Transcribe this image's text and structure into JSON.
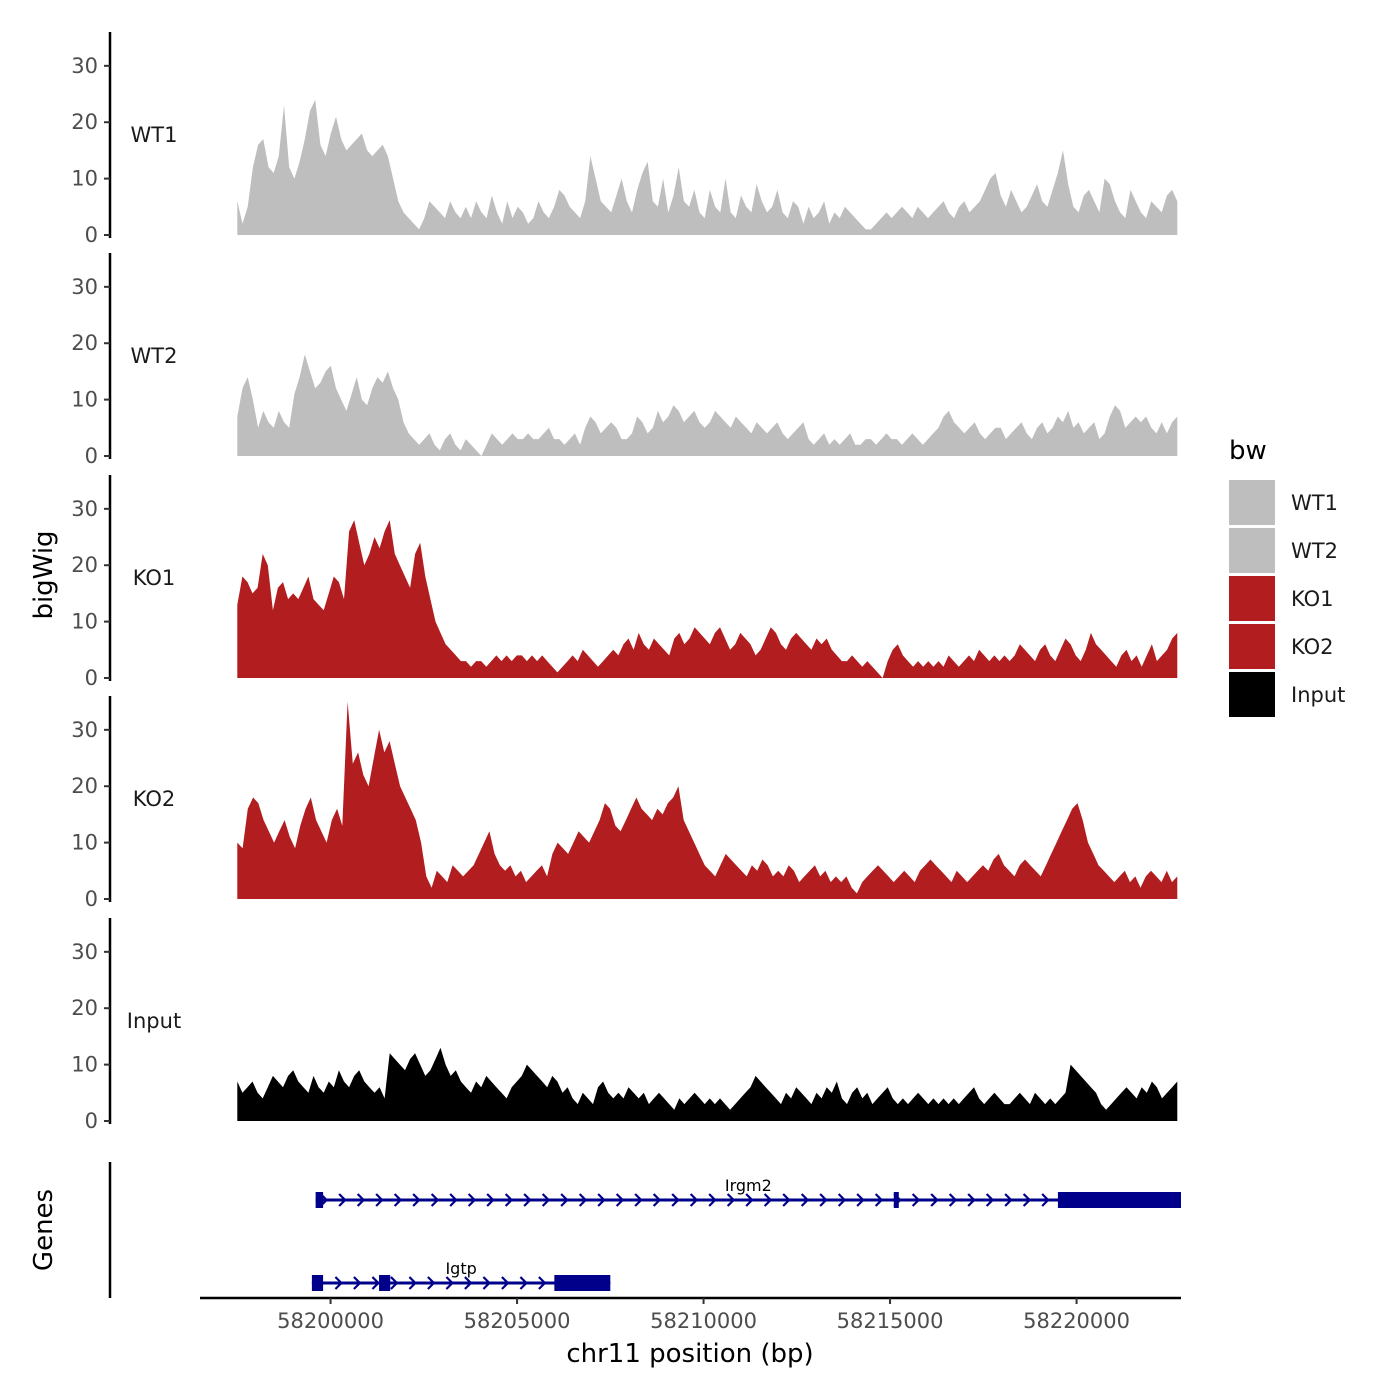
{
  "chart_data": {
    "type": "area",
    "chromosome_axis_label": "chr11 position (bp)",
    "y_axis_title": "bigWig",
    "genes_panel_title": "Genes",
    "x_range": [
      58196500,
      58222800
    ],
    "x_ticks": [
      58200000,
      58205000,
      58210000,
      58215000,
      58220000
    ],
    "x_tick_labels": [
      "58200000",
      "58205000",
      "58210000",
      "58215000",
      "58220000"
    ],
    "y_range": [
      0,
      36
    ],
    "y_ticks": [
      0,
      10,
      20,
      30
    ],
    "y_tick_labels": [
      "0",
      "10",
      "20",
      "30"
    ],
    "signal_x_start": 58197500,
    "signal_x_end": 58222700,
    "tracks": [
      {
        "name": "WT1",
        "color": "#bebebe",
        "values": [
          6,
          2,
          5,
          12,
          16,
          17,
          12,
          11,
          14,
          23,
          12,
          10,
          13,
          17,
          22,
          24,
          16,
          14,
          18,
          21,
          17,
          15,
          16,
          17,
          18,
          15,
          14,
          15,
          16,
          14,
          10,
          6,
          4,
          3,
          2,
          1,
          3,
          6,
          5,
          4,
          3,
          6,
          4,
          3,
          5,
          3,
          6,
          4,
          3,
          7,
          4,
          2,
          6,
          3,
          5,
          4,
          2,
          3,
          6,
          4,
          3,
          5,
          8,
          7,
          5,
          4,
          3,
          6,
          14,
          10,
          6,
          5,
          4,
          7,
          10,
          6,
          4,
          8,
          11,
          13,
          6,
          5,
          10,
          4,
          7,
          12,
          6,
          5,
          8,
          4,
          3,
          8,
          5,
          4,
          10,
          4,
          3,
          7,
          5,
          4,
          9,
          6,
          4,
          5,
          8,
          4,
          3,
          6,
          5,
          2,
          5,
          3,
          4,
          6,
          2,
          4,
          3,
          5,
          4,
          3,
          2,
          1,
          1,
          2,
          3,
          4,
          3,
          4,
          5,
          4,
          3,
          5,
          4,
          3,
          4,
          5,
          6,
          4,
          3,
          5,
          6,
          4,
          5,
          6,
          8,
          10,
          11,
          7,
          5,
          8,
          6,
          4,
          5,
          7,
          9,
          6,
          5,
          8,
          11,
          15,
          9,
          5,
          4,
          7,
          8,
          6,
          4,
          10,
          9,
          6,
          4,
          3,
          8,
          6,
          4,
          3,
          6,
          5,
          4,
          7,
          8,
          6
        ]
      },
      {
        "name": "WT2",
        "color": "#bebebe",
        "values": [
          7,
          12,
          14,
          10,
          5,
          8,
          6,
          5,
          8,
          6,
          5,
          11,
          14,
          18,
          15,
          12,
          13,
          15,
          16,
          12,
          10,
          8,
          11,
          14,
          10,
          9,
          12,
          14,
          13,
          15,
          12,
          10,
          6,
          4,
          3,
          2,
          3,
          4,
          2,
          1,
          3,
          4,
          2,
          1,
          3,
          2,
          1,
          0,
          2,
          4,
          3,
          2,
          3,
          4,
          3,
          3,
          4,
          3,
          3,
          4,
          5,
          3,
          3,
          2,
          3,
          4,
          2,
          5,
          7,
          6,
          4,
          5,
          6,
          5,
          3,
          3,
          4,
          7,
          6,
          4,
          5,
          8,
          6,
          7,
          9,
          8,
          6,
          7,
          8,
          6,
          5,
          6,
          8,
          7,
          6,
          5,
          7,
          6,
          5,
          4,
          6,
          5,
          4,
          5,
          6,
          4,
          3,
          4,
          5,
          6,
          3,
          2,
          3,
          4,
          2,
          3,
          2,
          3,
          4,
          2,
          2,
          3,
          3,
          2,
          3,
          4,
          3,
          3,
          2,
          3,
          4,
          3,
          2,
          3,
          4,
          5,
          7,
          8,
          6,
          5,
          4,
          5,
          6,
          4,
          3,
          4,
          5,
          5,
          3,
          4,
          5,
          6,
          4,
          3,
          5,
          6,
          4,
          5,
          7,
          6,
          8,
          5,
          6,
          4,
          5,
          6,
          3,
          4,
          7,
          9,
          8,
          5,
          6,
          7,
          6,
          7,
          5,
          4,
          6,
          4,
          6,
          7
        ]
      },
      {
        "name": "KO1",
        "color": "#b21e20",
        "values": [
          13,
          18,
          17,
          15,
          16,
          22,
          20,
          12,
          16,
          17,
          14,
          15,
          14,
          16,
          18,
          14,
          13,
          12,
          15,
          18,
          17,
          14,
          26,
          28,
          24,
          20,
          22,
          25,
          23,
          26,
          28,
          22,
          20,
          18,
          16,
          22,
          24,
          18,
          14,
          10,
          8,
          6,
          5,
          4,
          3,
          3,
          2,
          3,
          3,
          2,
          3,
          4,
          3,
          4,
          3,
          4,
          4,
          3,
          4,
          3,
          4,
          3,
          2,
          1,
          2,
          3,
          4,
          3,
          5,
          4,
          3,
          2,
          3,
          4,
          5,
          4,
          6,
          7,
          5,
          8,
          6,
          5,
          7,
          6,
          5,
          4,
          7,
          8,
          6,
          7,
          9,
          8,
          7,
          6,
          8,
          9,
          7,
          5,
          6,
          8,
          7,
          6,
          4,
          5,
          7,
          9,
          8,
          6,
          5,
          7,
          8,
          7,
          6,
          5,
          7,
          6,
          7,
          5,
          4,
          3,
          3,
          4,
          3,
          2,
          3,
          2,
          1,
          0,
          3,
          5,
          6,
          4,
          3,
          2,
          3,
          2,
          3,
          2,
          3,
          2,
          4,
          3,
          2,
          3,
          4,
          3,
          5,
          4,
          3,
          4,
          3,
          4,
          3,
          4,
          6,
          5,
          4,
          3,
          5,
          6,
          4,
          3,
          5,
          7,
          6,
          4,
          3,
          5,
          8,
          6,
          5,
          4,
          3,
          2,
          4,
          5,
          3,
          4,
          2,
          4,
          6,
          3,
          4,
          5,
          7,
          8
        ]
      },
      {
        "name": "KO2",
        "color": "#b21e20",
        "values": [
          10,
          9,
          16,
          18,
          17,
          14,
          12,
          10,
          12,
          14,
          11,
          9,
          13,
          16,
          18,
          14,
          12,
          10,
          14,
          16,
          13,
          35,
          24,
          26,
          22,
          20,
          25,
          30,
          26,
          28,
          24,
          20,
          18,
          16,
          14,
          10,
          4,
          2,
          5,
          4,
          3,
          6,
          5,
          4,
          5,
          6,
          8,
          10,
          12,
          8,
          6,
          5,
          6,
          4,
          5,
          3,
          4,
          5,
          6,
          4,
          8,
          10,
          9,
          8,
          10,
          12,
          11,
          10,
          12,
          14,
          17,
          16,
          13,
          12,
          14,
          16,
          18,
          16,
          15,
          14,
          16,
          15,
          17,
          18,
          20,
          14,
          12,
          10,
          8,
          6,
          5,
          4,
          6,
          8,
          7,
          6,
          5,
          4,
          6,
          5,
          7,
          6,
          4,
          5,
          4,
          6,
          5,
          3,
          4,
          5,
          6,
          4,
          5,
          3,
          4,
          3,
          4,
          2,
          1,
          3,
          4,
          5,
          6,
          5,
          4,
          3,
          4,
          5,
          4,
          3,
          5,
          6,
          7,
          6,
          5,
          4,
          3,
          5,
          4,
          3,
          4,
          5,
          6,
          5,
          7,
          8,
          6,
          5,
          4,
          6,
          7,
          6,
          5,
          4,
          6,
          8,
          10,
          12,
          14,
          16,
          17,
          14,
          10,
          8,
          6,
          5,
          4,
          3,
          4,
          5,
          3,
          4,
          2,
          4,
          5,
          4,
          3,
          5,
          3,
          4
        ]
      },
      {
        "name": "Input",
        "color": "#000000",
        "values": [
          7,
          5,
          6,
          7,
          5,
          4,
          6,
          8,
          7,
          6,
          8,
          9,
          7,
          6,
          5,
          8,
          6,
          5,
          7,
          6,
          9,
          7,
          6,
          8,
          9,
          7,
          6,
          5,
          6,
          4,
          12,
          11,
          10,
          9,
          11,
          12,
          10,
          8,
          9,
          11,
          13,
          10,
          8,
          9,
          7,
          6,
          5,
          7,
          6,
          8,
          7,
          6,
          5,
          4,
          6,
          7,
          8,
          10,
          9,
          8,
          7,
          6,
          8,
          7,
          5,
          6,
          4,
          3,
          5,
          4,
          3,
          6,
          7,
          5,
          4,
          5,
          4,
          6,
          5,
          4,
          5,
          3,
          4,
          5,
          4,
          3,
          2,
          4,
          3,
          4,
          5,
          4,
          3,
          4,
          3,
          4,
          3,
          2,
          3,
          4,
          5,
          6,
          8,
          7,
          6,
          5,
          4,
          3,
          5,
          4,
          6,
          5,
          4,
          3,
          5,
          4,
          6,
          5,
          7,
          4,
          3,
          5,
          6,
          4,
          5,
          3,
          4,
          5,
          6,
          4,
          3,
          4,
          3,
          4,
          5,
          4,
          3,
          4,
          3,
          4,
          3,
          4,
          3,
          4,
          5,
          6,
          4,
          3,
          4,
          5,
          4,
          3,
          3,
          4,
          5,
          4,
          3,
          5,
          4,
          3,
          4,
          3,
          4,
          5,
          10,
          9,
          8,
          7,
          6,
          5,
          3,
          2,
          3,
          4,
          5,
          6,
          5,
          4,
          6,
          5,
          7,
          6,
          4,
          5,
          6,
          7
        ]
      }
    ],
    "genes": [
      {
        "name": "Irgm2",
        "strand": "+",
        "start": 58199600,
        "end": 58222800,
        "exons": [
          [
            58199600,
            58199800
          ],
          [
            58215100,
            58215200
          ],
          [
            58219500,
            58222800
          ]
        ]
      },
      {
        "name": "Igtp",
        "strand": "+",
        "start": 58199500,
        "end": 58207500,
        "exons": [
          [
            58199500,
            58199800
          ],
          [
            58201300,
            58201600
          ],
          [
            58206000,
            58207500
          ]
        ]
      }
    ]
  },
  "legend": {
    "title": "bw",
    "items": [
      {
        "label": "WT1",
        "color": "#bebebe"
      },
      {
        "label": "WT2",
        "color": "#bebebe"
      },
      {
        "label": "KO1",
        "color": "#b21e20"
      },
      {
        "label": "KO2",
        "color": "#b21e20"
      },
      {
        "label": "Input",
        "color": "#000000"
      }
    ]
  },
  "gene_color": "#00008b"
}
